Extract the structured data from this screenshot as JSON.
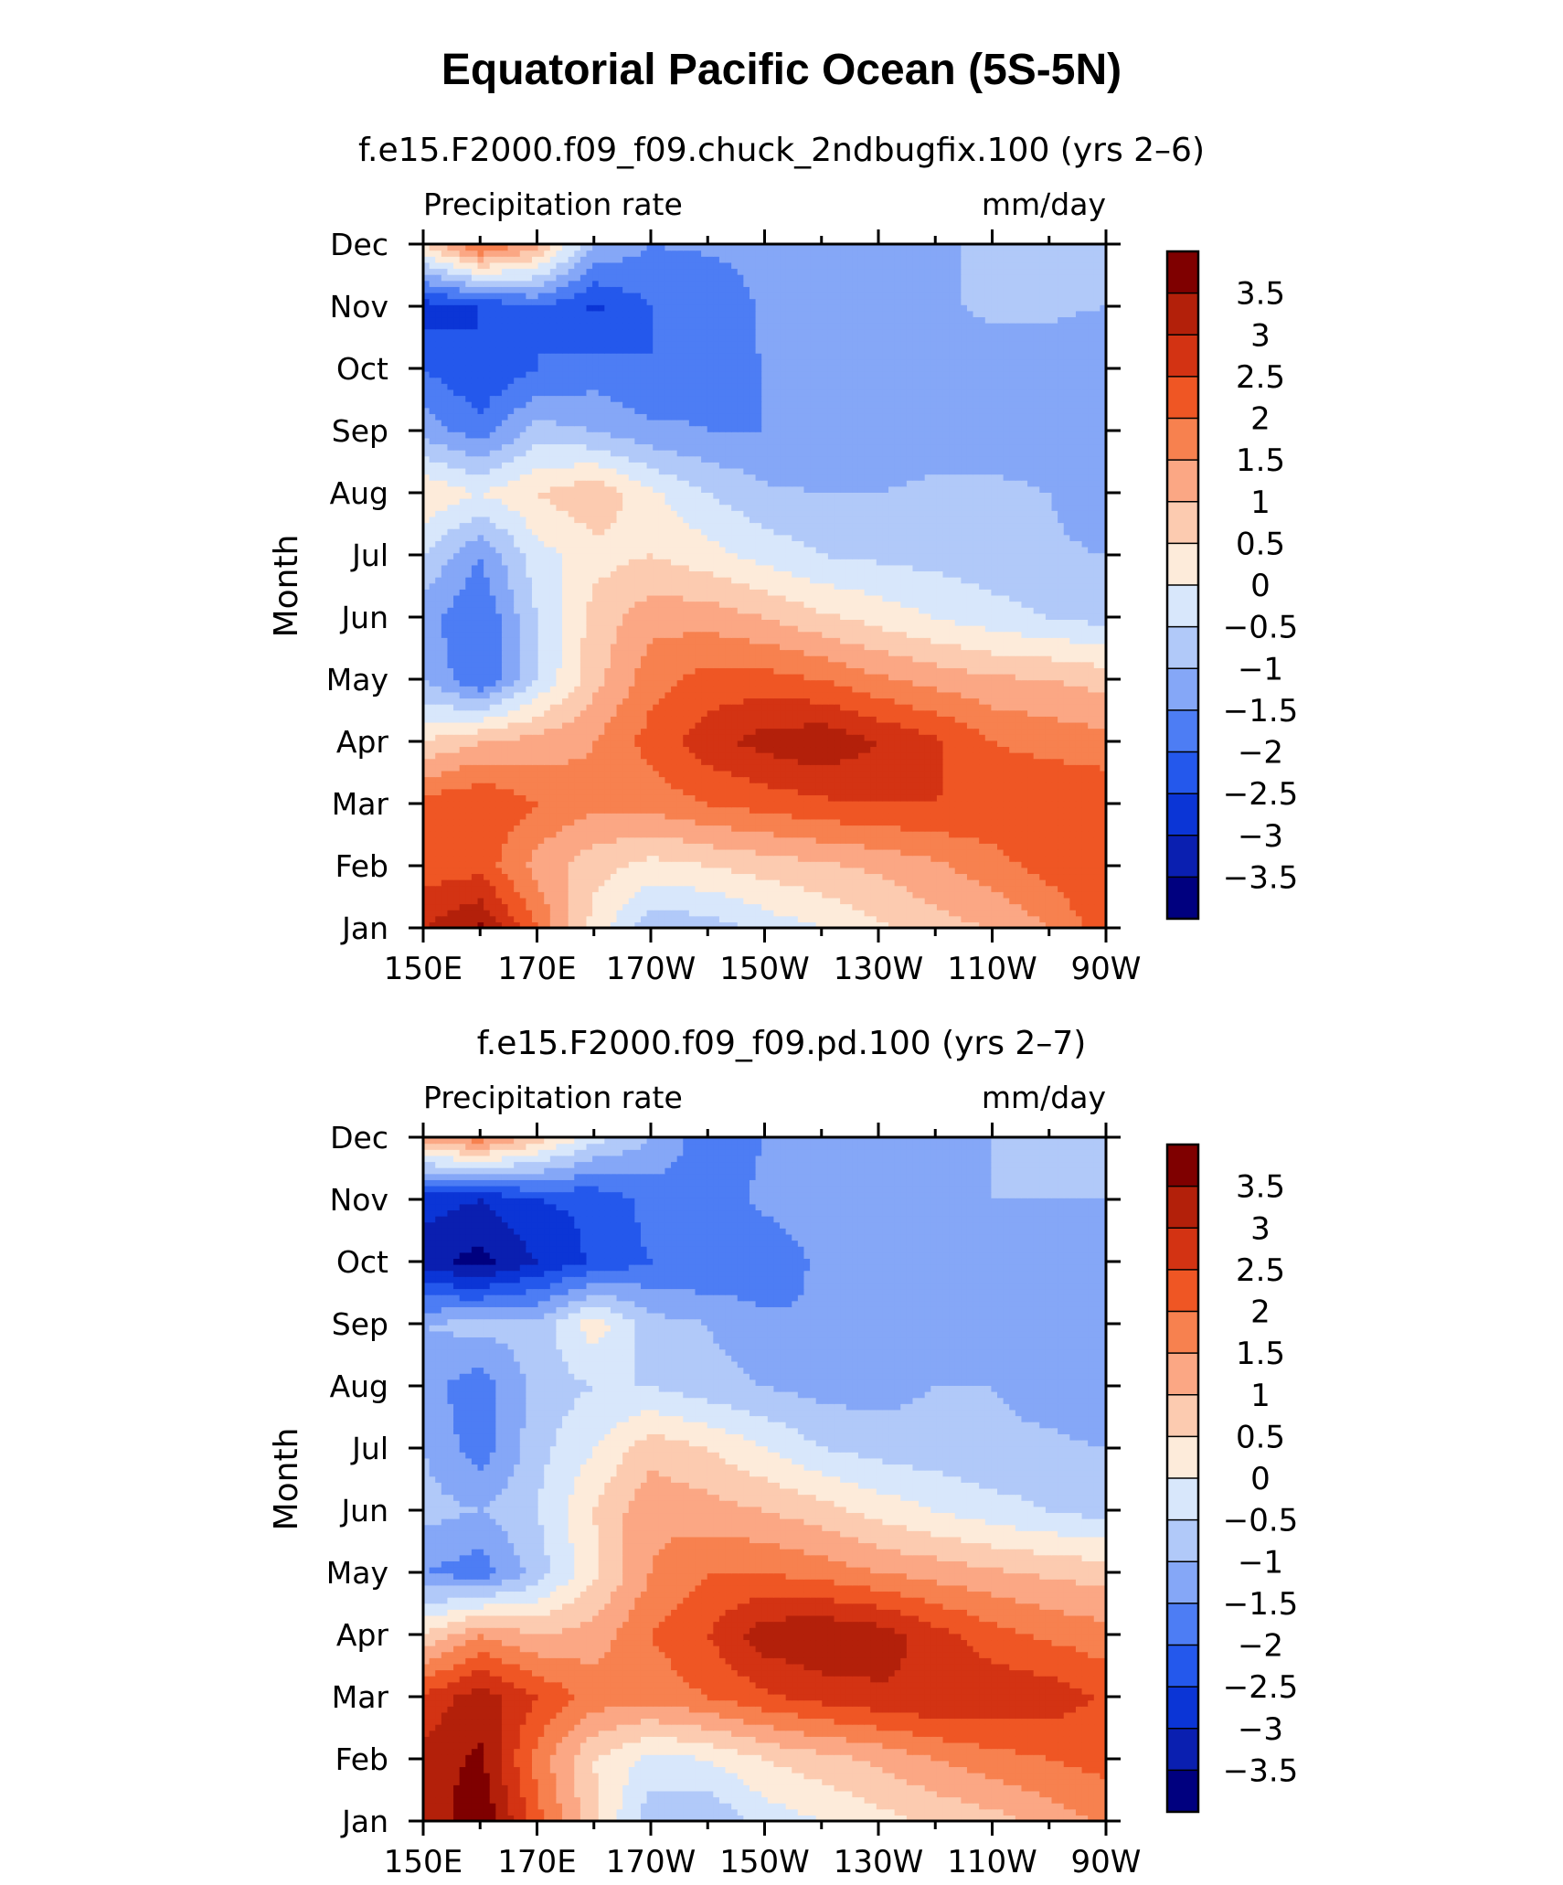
{
  "figure": {
    "title": "Equatorial Pacific Ocean (5S-5N)"
  },
  "chart_data": [
    {
      "type": "heatmap",
      "subtitle": "f.e15.F2000.f09_f09.chuck_2ndbugfix.100 (yrs 2–6)",
      "variable": "Precipitation rate",
      "units": "mm/day",
      "ylabel": "Month",
      "x_ticks": [
        "150E",
        "170E",
        "170W",
        "150W",
        "130W",
        "110W",
        "90W"
      ],
      "y_ticks": [
        "Jan",
        "Feb",
        "Mar",
        "Apr",
        "May",
        "Jun",
        "Jul",
        "Aug",
        "Sep",
        "Oct",
        "Nov",
        "Dec"
      ],
      "x": [
        150,
        160,
        170,
        180,
        190,
        200,
        210,
        220,
        230,
        240,
        250,
        260,
        270
      ],
      "y": [
        "Jan",
        "Feb",
        "Mar",
        "Apr",
        "May",
        "Jun",
        "Jul",
        "Aug",
        "Sep",
        "Oct",
        "Nov",
        "Dec"
      ],
      "z": [
        [
          3.0,
          3.6,
          2.0,
          0.3,
          -0.8,
          -0.8,
          -0.3,
          0.0,
          0.4,
          0.8,
          1.0,
          1.5,
          2.3
        ],
        [
          2.2,
          2.3,
          1.3,
          0.7,
          0.3,
          0.5,
          0.7,
          0.9,
          1.1,
          1.4,
          1.8,
          2.2,
          2.5
        ],
        [
          2.2,
          2.5,
          2.0,
          1.6,
          1.7,
          2.0,
          2.2,
          2.4,
          2.5,
          2.5,
          2.4,
          2.5,
          2.4
        ],
        [
          0.5,
          1.0,
          1.2,
          1.5,
          2.2,
          2.8,
          3.2,
          3.4,
          3.0,
          2.6,
          2.0,
          1.8,
          1.7
        ],
        [
          -1.0,
          -2.0,
          -0.5,
          0.8,
          1.8,
          2.2,
          2.2,
          2.0,
          1.6,
          1.3,
          1.1,
          1.0,
          0.8
        ],
        [
          -1.3,
          -2.0,
          -0.5,
          0.7,
          1.3,
          1.3,
          1.0,
          0.6,
          0.3,
          0.0,
          -0.3,
          -0.5,
          -0.7
        ],
        [
          -0.5,
          -1.5,
          -0.2,
          0.3,
          0.5,
          0.2,
          -0.2,
          -0.5,
          -0.6,
          -0.7,
          -0.8,
          -0.9,
          -1.0
        ],
        [
          0.5,
          0.0,
          0.5,
          0.9,
          0.1,
          -0.5,
          -0.9,
          -1.0,
          -1.0,
          -0.8,
          -0.8,
          -1.0,
          -1.4
        ],
        [
          -1.2,
          -1.8,
          -0.8,
          -1.0,
          -1.4,
          -1.5,
          -1.5,
          -1.5,
          -1.5,
          -1.5,
          -1.5,
          -1.4,
          -1.5
        ],
        [
          -2.0,
          -2.5,
          -2.0,
          -1.8,
          -2.0,
          -1.6,
          -1.5,
          -1.4,
          -1.4,
          -1.3,
          -1.3,
          -1.3,
          -1.5
        ],
        [
          -2.8,
          -2.5,
          -2.0,
          -2.6,
          -2.0,
          -2.0,
          -1.4,
          -1.3,
          -1.2,
          -1.1,
          -0.9,
          -0.9,
          -1.0
        ],
        [
          0.5,
          2.2,
          1.2,
          -1.0,
          -1.5,
          -1.4,
          -1.3,
          -1.2,
          -1.1,
          -1.0,
          -1.0,
          -1.0,
          -1.0
        ]
      ],
      "levels": [
        -3.5,
        -3,
        -2.5,
        -2,
        -1.5,
        -1,
        -0.5,
        0,
        0.5,
        1,
        1.5,
        2,
        2.5,
        3,
        3.5
      ],
      "colorbar_labels": [
        "3.5",
        "3",
        "2.5",
        "2",
        "1.5",
        "1",
        "0.5",
        "0",
        "−0.5",
        "−1",
        "−1.5",
        "−2",
        "−2.5",
        "−3",
        "−3.5"
      ]
    },
    {
      "type": "heatmap",
      "subtitle": "f.e15.F2000.f09_f09.pd.100 (yrs 2–7)",
      "variable": "Precipitation rate",
      "units": "mm/day",
      "ylabel": "Month",
      "x_ticks": [
        "150E",
        "170E",
        "170W",
        "150W",
        "130W",
        "110W",
        "90W"
      ],
      "y_ticks": [
        "Jan",
        "Feb",
        "Mar",
        "Apr",
        "May",
        "Jun",
        "Jul",
        "Aug",
        "Sep",
        "Oct",
        "Nov",
        "Dec"
      ],
      "x": [
        150,
        160,
        170,
        180,
        190,
        200,
        210,
        220,
        230,
        240,
        250,
        260,
        270
      ],
      "y": [
        "Jan",
        "Feb",
        "Mar",
        "Apr",
        "May",
        "Jun",
        "Jul",
        "Aug",
        "Sep",
        "Oct",
        "Nov",
        "Dec"
      ],
      "z": [
        [
          3.0,
          4.0,
          2.2,
          0.6,
          -0.8,
          -1.0,
          -0.3,
          0.0,
          0.3,
          0.6,
          0.8,
          1.2,
          1.6
        ],
        [
          3.2,
          3.6,
          1.8,
          0.5,
          -0.2,
          0.0,
          0.5,
          0.8,
          1.1,
          1.5,
          1.8,
          2.0,
          2.2
        ],
        [
          2.6,
          3.3,
          2.5,
          1.8,
          1.7,
          2.0,
          2.4,
          2.7,
          2.9,
          3.0,
          2.9,
          2.8,
          2.4
        ],
        [
          0.5,
          1.5,
          1.0,
          1.2,
          2.0,
          2.5,
          3.3,
          3.5,
          3.3,
          2.7,
          2.2,
          1.9,
          1.7
        ],
        [
          -1.5,
          -1.8,
          -0.8,
          0.4,
          1.5,
          2.0,
          2.0,
          1.8,
          1.5,
          1.3,
          1.1,
          0.9,
          0.8
        ],
        [
          -0.8,
          -1.0,
          -0.5,
          0.5,
          1.4,
          1.2,
          1.0,
          0.7,
          0.3,
          0.0,
          -0.3,
          -0.5,
          -0.7
        ],
        [
          -1.0,
          -1.8,
          -0.7,
          0.0,
          0.8,
          0.5,
          0.0,
          -0.5,
          -0.7,
          -0.8,
          -0.9,
          -0.9,
          -1.0
        ],
        [
          -1.3,
          -1.8,
          -0.8,
          -0.5,
          -0.5,
          -0.8,
          -1.0,
          -1.2,
          -1.2,
          -1.0,
          -1.0,
          -1.2,
          -1.5
        ],
        [
          -1.0,
          -0.8,
          -0.8,
          0.3,
          -0.8,
          -1.0,
          -1.4,
          -1.5,
          -1.5,
          -1.5,
          -1.5,
          -1.4,
          -1.5
        ],
        [
          -3.3,
          -3.7,
          -3.0,
          -2.4,
          -2.0,
          -2.0,
          -1.8,
          -1.4,
          -1.4,
          -1.3,
          -1.3,
          -1.3,
          -1.5
        ],
        [
          -2.8,
          -3.0,
          -2.5,
          -2.4,
          -1.8,
          -1.7,
          -1.4,
          -1.3,
          -1.2,
          -1.1,
          -1.0,
          -1.0,
          -1.0
        ],
        [
          1.2,
          1.8,
          0.8,
          -0.3,
          -1.0,
          -1.8,
          -1.5,
          -1.2,
          -1.1,
          -1.0,
          -1.0,
          -1.0,
          -1.0
        ]
      ],
      "levels": [
        -3.5,
        -3,
        -2.5,
        -2,
        -1.5,
        -1,
        -0.5,
        0,
        0.5,
        1,
        1.5,
        2,
        2.5,
        3,
        3.5
      ],
      "colorbar_labels": [
        "3.5",
        "3",
        "2.5",
        "2",
        "1.5",
        "1",
        "0.5",
        "0",
        "−0.5",
        "−1",
        "−1.5",
        "−2",
        "−2.5",
        "−3",
        "−3.5"
      ]
    }
  ],
  "colormap": [
    "#00007f",
    "#0a1fb0",
    "#0b35d6",
    "#2458ec",
    "#4d7df4",
    "#85a7f7",
    "#b1c9f9",
    "#d8e7fb",
    "#fdebda",
    "#fccbb0",
    "#fba784",
    "#f7814f",
    "#ef5624",
    "#d33313",
    "#b3200a",
    "#7f0000"
  ]
}
